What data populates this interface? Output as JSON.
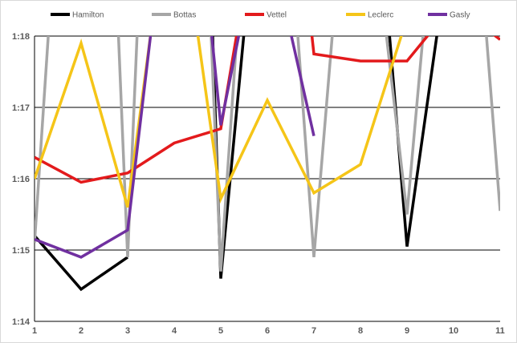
{
  "chart_data": {
    "type": "line",
    "title": "",
    "xlabel": "",
    "ylabel": "",
    "x": [
      1,
      2,
      3,
      4,
      5,
      6,
      7,
      8,
      9,
      10,
      11
    ],
    "x_tick_labels": [
      "1",
      "2",
      "3",
      "4",
      "5",
      "6",
      "7",
      "8",
      "9",
      "10",
      "11"
    ],
    "y_tick_labels": [
      "1:14",
      "1:15",
      "1:16",
      "1:17",
      "1:18"
    ],
    "y_tick_values": [
      74,
      75,
      76,
      77,
      78
    ],
    "xlim": [
      1,
      11
    ],
    "ylim": [
      74,
      78
    ],
    "y_unit": "lap time (m:ss)",
    "grid": "horizontal",
    "legend_position": "top",
    "series": [
      {
        "name": "Hamilton",
        "color": "#000000",
        "segments": [
          [
            [
              1,
              75.2
            ],
            [
              2,
              74.45
            ],
            [
              3,
              74.9
            ]
          ],
          [
            [
              3.35,
              78.1
            ],
            [
              3.5,
              79.5
            ]
          ],
          [
            [
              4.75,
              79.5
            ],
            [
              5,
              74.6
            ],
            [
              5.5,
              78.05
            ]
          ],
          [
            [
              8.6,
              78.2
            ],
            [
              9,
              75.05
            ],
            [
              9.65,
              78.05
            ]
          ]
        ]
      },
      {
        "name": "Bottas",
        "color": "#a6a6a6",
        "segments": [
          [
            [
              1,
              75.1
            ],
            [
              1.3,
              78.05
            ]
          ],
          [
            [
              2.8,
              78.05
            ],
            [
              3,
              74.9
            ],
            [
              3.3,
              79.5
            ]
          ],
          [
            [
              4.7,
              79.5
            ],
            [
              5,
              74.7
            ],
            [
              5.35,
              78.05
            ]
          ],
          [
            [
              6.65,
              78.05
            ],
            [
              7,
              74.9
            ],
            [
              7.4,
              78.05
            ]
          ],
          [
            [
              8.55,
              78.05
            ],
            [
              9,
              75.5
            ],
            [
              9.35,
              78.05
            ]
          ],
          [
            [
              10.7,
              78.05
            ],
            [
              11,
              75.55
            ]
          ]
        ]
      },
      {
        "name": "Vettel",
        "color": "#e31a1c",
        "segments": [
          [
            [
              1,
              76.3
            ],
            [
              2,
              75.95
            ],
            [
              3,
              76.08
            ],
            [
              4,
              76.5
            ],
            [
              5,
              76.7
            ],
            [
              5.35,
              78.05
            ]
          ],
          [
            [
              6.95,
              78.05
            ],
            [
              7,
              77.75
            ],
            [
              8,
              77.65
            ],
            [
              9,
              77.65
            ],
            [
              9.5,
              78.05
            ]
          ],
          [
            [
              10.8,
              78.05
            ],
            [
              11,
              77.95
            ]
          ]
        ]
      },
      {
        "name": "Leclerc",
        "color": "#f5c518",
        "segments": [
          [
            [
              1,
              76
            ],
            [
              2,
              77.9
            ],
            [
              3,
              75.6
            ],
            [
              3.5,
              78.05
            ]
          ],
          [
            [
              4.5,
              78.05
            ],
            [
              5,
              75.72
            ],
            [
              6,
              77.1
            ],
            [
              7,
              75.8
            ],
            [
              8,
              76.2
            ],
            [
              8.9,
              78.05
            ]
          ]
        ]
      },
      {
        "name": "Gasly",
        "color": "#7030a0",
        "segments": [
          [
            [
              1,
              75.15
            ],
            [
              2,
              74.9
            ],
            [
              3,
              75.28
            ],
            [
              3.5,
              78.05
            ]
          ],
          [
            [
              4.8,
              78.05
            ],
            [
              5,
              76.75
            ],
            [
              5.4,
              78.05
            ]
          ],
          [
            [
              6.5,
              78.05
            ],
            [
              7,
              76.6
            ]
          ]
        ]
      }
    ]
  }
}
